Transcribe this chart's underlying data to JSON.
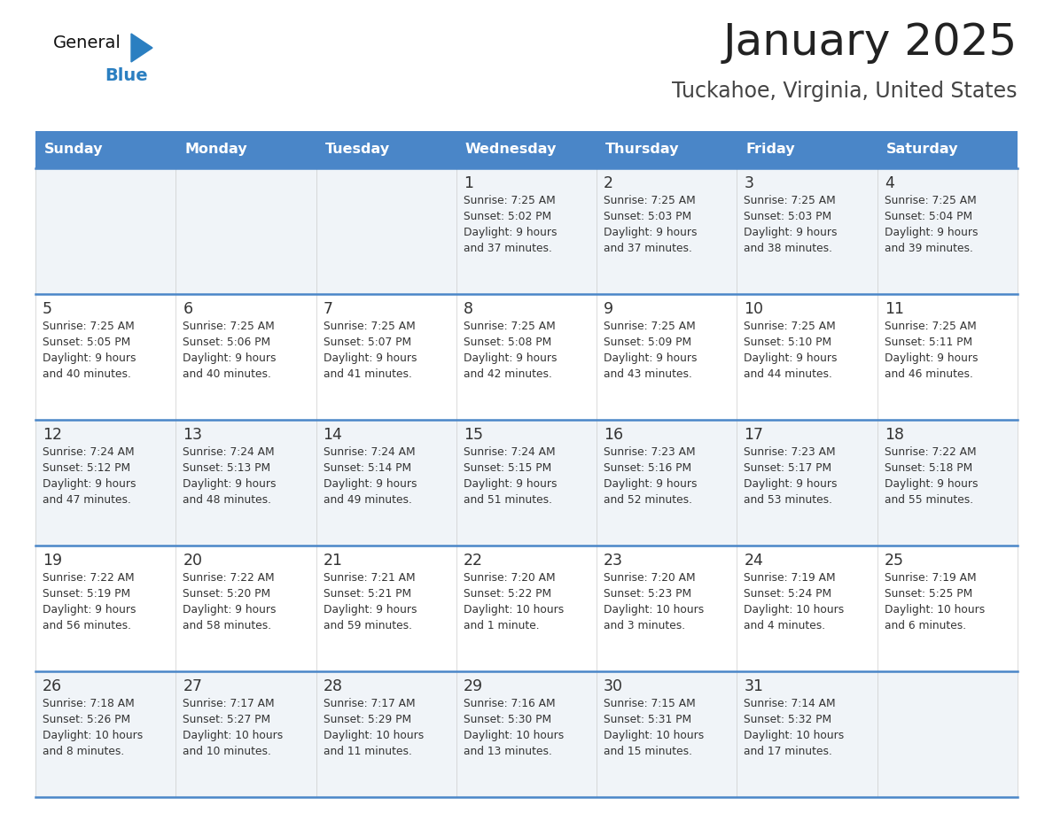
{
  "title": "January 2025",
  "subtitle": "Tuckahoe, Virginia, United States",
  "days_of_week": [
    "Sunday",
    "Monday",
    "Tuesday",
    "Wednesday",
    "Thursday",
    "Friday",
    "Saturday"
  ],
  "header_bg": "#4a86c8",
  "header_text": "#ffffff",
  "row_bg_even": "#f0f4f8",
  "row_bg_odd": "#ffffff",
  "cell_text": "#333333",
  "title_color": "#222222",
  "subtitle_color": "#444444",
  "border_color": "#4a86c8",
  "logo_general_color": "#111111",
  "logo_blue_color": "#2b7fc1",
  "weeks": [
    [
      {
        "day": null,
        "info": null
      },
      {
        "day": null,
        "info": null
      },
      {
        "day": null,
        "info": null
      },
      {
        "day": 1,
        "info": "Sunrise: 7:25 AM\nSunset: 5:02 PM\nDaylight: 9 hours\nand 37 minutes."
      },
      {
        "day": 2,
        "info": "Sunrise: 7:25 AM\nSunset: 5:03 PM\nDaylight: 9 hours\nand 37 minutes."
      },
      {
        "day": 3,
        "info": "Sunrise: 7:25 AM\nSunset: 5:03 PM\nDaylight: 9 hours\nand 38 minutes."
      },
      {
        "day": 4,
        "info": "Sunrise: 7:25 AM\nSunset: 5:04 PM\nDaylight: 9 hours\nand 39 minutes."
      }
    ],
    [
      {
        "day": 5,
        "info": "Sunrise: 7:25 AM\nSunset: 5:05 PM\nDaylight: 9 hours\nand 40 minutes."
      },
      {
        "day": 6,
        "info": "Sunrise: 7:25 AM\nSunset: 5:06 PM\nDaylight: 9 hours\nand 40 minutes."
      },
      {
        "day": 7,
        "info": "Sunrise: 7:25 AM\nSunset: 5:07 PM\nDaylight: 9 hours\nand 41 minutes."
      },
      {
        "day": 8,
        "info": "Sunrise: 7:25 AM\nSunset: 5:08 PM\nDaylight: 9 hours\nand 42 minutes."
      },
      {
        "day": 9,
        "info": "Sunrise: 7:25 AM\nSunset: 5:09 PM\nDaylight: 9 hours\nand 43 minutes."
      },
      {
        "day": 10,
        "info": "Sunrise: 7:25 AM\nSunset: 5:10 PM\nDaylight: 9 hours\nand 44 minutes."
      },
      {
        "day": 11,
        "info": "Sunrise: 7:25 AM\nSunset: 5:11 PM\nDaylight: 9 hours\nand 46 minutes."
      }
    ],
    [
      {
        "day": 12,
        "info": "Sunrise: 7:24 AM\nSunset: 5:12 PM\nDaylight: 9 hours\nand 47 minutes."
      },
      {
        "day": 13,
        "info": "Sunrise: 7:24 AM\nSunset: 5:13 PM\nDaylight: 9 hours\nand 48 minutes."
      },
      {
        "day": 14,
        "info": "Sunrise: 7:24 AM\nSunset: 5:14 PM\nDaylight: 9 hours\nand 49 minutes."
      },
      {
        "day": 15,
        "info": "Sunrise: 7:24 AM\nSunset: 5:15 PM\nDaylight: 9 hours\nand 51 minutes."
      },
      {
        "day": 16,
        "info": "Sunrise: 7:23 AM\nSunset: 5:16 PM\nDaylight: 9 hours\nand 52 minutes."
      },
      {
        "day": 17,
        "info": "Sunrise: 7:23 AM\nSunset: 5:17 PM\nDaylight: 9 hours\nand 53 minutes."
      },
      {
        "day": 18,
        "info": "Sunrise: 7:22 AM\nSunset: 5:18 PM\nDaylight: 9 hours\nand 55 minutes."
      }
    ],
    [
      {
        "day": 19,
        "info": "Sunrise: 7:22 AM\nSunset: 5:19 PM\nDaylight: 9 hours\nand 56 minutes."
      },
      {
        "day": 20,
        "info": "Sunrise: 7:22 AM\nSunset: 5:20 PM\nDaylight: 9 hours\nand 58 minutes."
      },
      {
        "day": 21,
        "info": "Sunrise: 7:21 AM\nSunset: 5:21 PM\nDaylight: 9 hours\nand 59 minutes."
      },
      {
        "day": 22,
        "info": "Sunrise: 7:20 AM\nSunset: 5:22 PM\nDaylight: 10 hours\nand 1 minute."
      },
      {
        "day": 23,
        "info": "Sunrise: 7:20 AM\nSunset: 5:23 PM\nDaylight: 10 hours\nand 3 minutes."
      },
      {
        "day": 24,
        "info": "Sunrise: 7:19 AM\nSunset: 5:24 PM\nDaylight: 10 hours\nand 4 minutes."
      },
      {
        "day": 25,
        "info": "Sunrise: 7:19 AM\nSunset: 5:25 PM\nDaylight: 10 hours\nand 6 minutes."
      }
    ],
    [
      {
        "day": 26,
        "info": "Sunrise: 7:18 AM\nSunset: 5:26 PM\nDaylight: 10 hours\nand 8 minutes."
      },
      {
        "day": 27,
        "info": "Sunrise: 7:17 AM\nSunset: 5:27 PM\nDaylight: 10 hours\nand 10 minutes."
      },
      {
        "day": 28,
        "info": "Sunrise: 7:17 AM\nSunset: 5:29 PM\nDaylight: 10 hours\nand 11 minutes."
      },
      {
        "day": 29,
        "info": "Sunrise: 7:16 AM\nSunset: 5:30 PM\nDaylight: 10 hours\nand 13 minutes."
      },
      {
        "day": 30,
        "info": "Sunrise: 7:15 AM\nSunset: 5:31 PM\nDaylight: 10 hours\nand 15 minutes."
      },
      {
        "day": 31,
        "info": "Sunrise: 7:14 AM\nSunset: 5:32 PM\nDaylight: 10 hours\nand 17 minutes."
      },
      {
        "day": null,
        "info": null
      }
    ]
  ]
}
